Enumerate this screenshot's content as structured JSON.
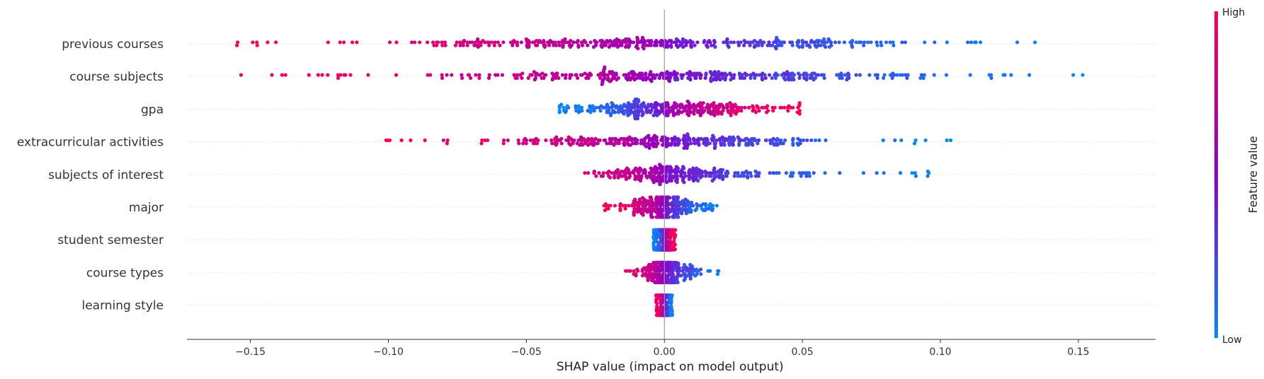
{
  "chart_data": {
    "type": "scatter",
    "subtype": "shap-beeswarm",
    "xlabel": "SHAP value (impact on model output)",
    "xlim": [
      -0.173,
      0.178
    ],
    "xticks": [
      -0.15,
      -0.1,
      -0.05,
      0.0,
      0.05,
      0.1,
      0.15
    ],
    "xtick_labels": [
      "−0.15",
      "−0.10",
      "−0.05",
      "0.00",
      "0.05",
      "0.10",
      "0.15"
    ],
    "grid": false,
    "features": [
      {
        "name": "previous courses",
        "min": -0.157,
        "max": 0.14,
        "direction": "low-right",
        "center_color": 0.55,
        "spread": 0.04,
        "tail_frac": 0.45
      },
      {
        "name": "course subjects",
        "min": -0.157,
        "max": 0.162,
        "direction": "low-right",
        "center_color": 0.55,
        "spread": 0.035,
        "tail_frac": 0.4
      },
      {
        "name": "gpa",
        "min": -0.038,
        "max": 0.049,
        "direction": "high-right",
        "center_color": 0.5,
        "spread": 0.03,
        "tail_frac": 0.85
      },
      {
        "name": "extracurricular activities",
        "min": -0.101,
        "max": 0.107,
        "direction": "low-right",
        "center_color": 0.6,
        "spread": 0.025,
        "tail_frac": 0.3
      },
      {
        "name": "subjects of interest",
        "min": -0.047,
        "max": 0.1,
        "direction": "low-right",
        "center_color": 0.6,
        "spread": 0.012,
        "tail_frac": 0.25
      },
      {
        "name": "major",
        "min": -0.022,
        "max": 0.019,
        "direction": "low-right",
        "center_color": 0.5,
        "spread": 0.006,
        "tail_frac": 0.5
      },
      {
        "name": "student semester",
        "min": -0.004,
        "max": 0.004,
        "direction": "high-right",
        "center_color": 0.5,
        "spread": 0.003,
        "tail_frac": 0.9
      },
      {
        "name": "course types",
        "min": -0.017,
        "max": 0.023,
        "direction": "low-right",
        "center_color": 0.5,
        "spread": 0.004,
        "tail_frac": 0.2
      },
      {
        "name": "learning style",
        "min": -0.003,
        "max": 0.003,
        "direction": "low-right",
        "center_color": 0.5,
        "spread": 0.002,
        "tail_frac": 0.9
      }
    ],
    "colorbar": {
      "label": "Feature value",
      "high_label": "High",
      "low_label": "Low",
      "low_color": "#008bfb",
      "mid_color": "#8c00c8",
      "high_color": "#ff0052"
    }
  }
}
